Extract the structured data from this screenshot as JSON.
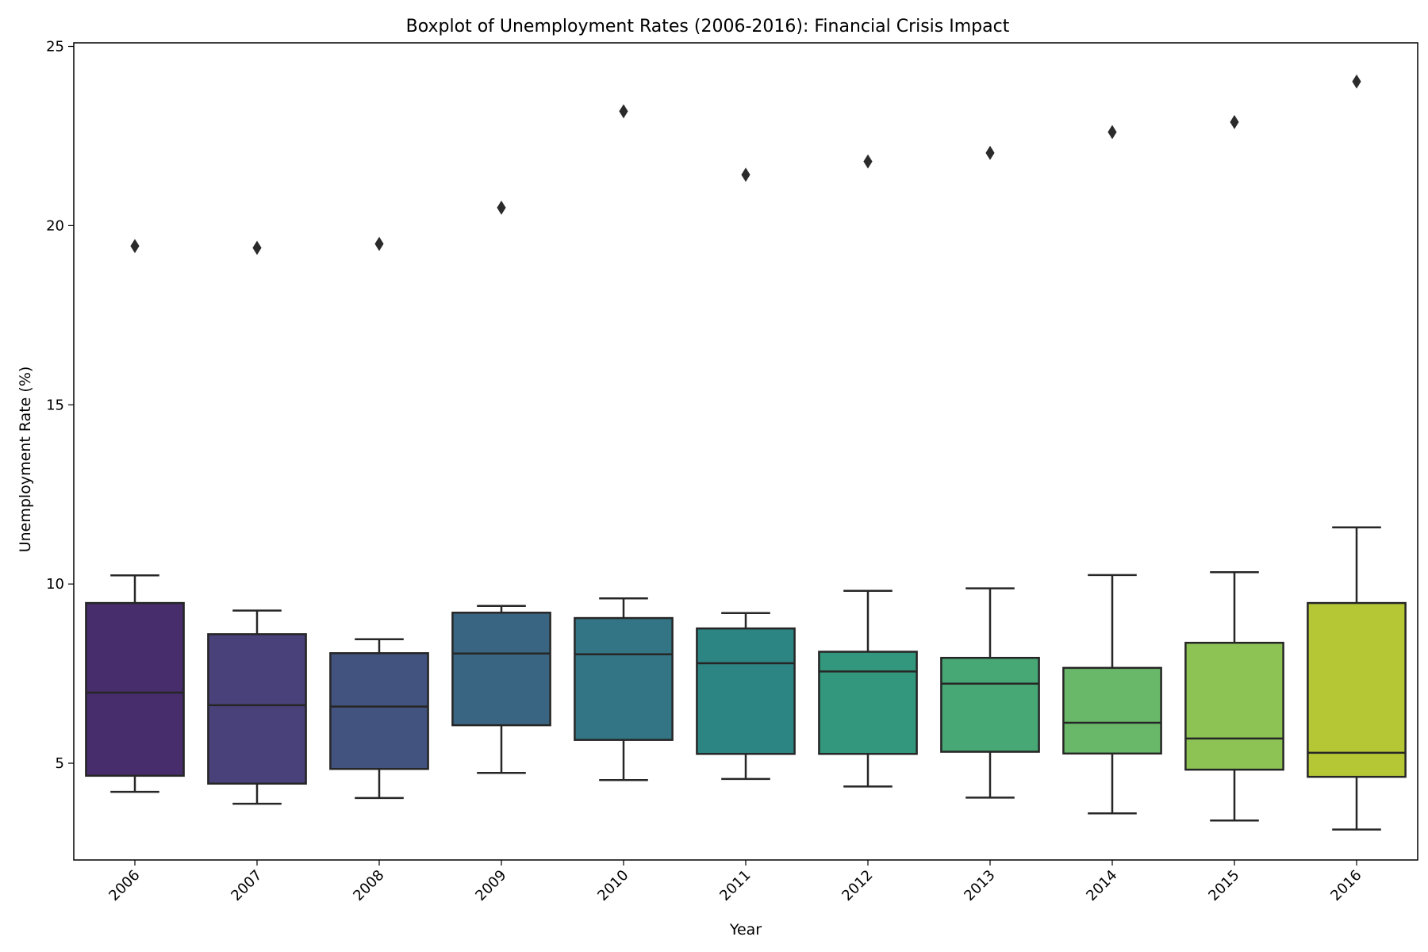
{
  "chart_data": {
    "type": "box",
    "title": "Boxplot of Unemployment Rates (2006-2016): Financial Crisis Impact",
    "xlabel": "Year",
    "ylabel": "Unemployment Rate (%)",
    "ylim": [
      2.3,
      25.1
    ],
    "yticks": [
      5,
      10,
      15,
      20,
      25
    ],
    "grid": false,
    "legend": "none",
    "categories": [
      "2006",
      "2007",
      "2008",
      "2009",
      "2010",
      "2011",
      "2012",
      "2013",
      "2014",
      "2015",
      "2016"
    ],
    "boxes": [
      {
        "year": "2006",
        "whisker_low": 4.2,
        "q1": 4.65,
        "median": 6.97,
        "q3": 9.47,
        "whisker_high": 10.24,
        "outliers": [
          19.43
        ],
        "color": "#472d6b"
      },
      {
        "year": "2007",
        "whisker_low": 3.87,
        "q1": 4.43,
        "median": 6.62,
        "q3": 8.6,
        "whisker_high": 9.26,
        "outliers": [
          19.38
        ],
        "color": "#48417a"
      },
      {
        "year": "2008",
        "whisker_low": 4.03,
        "q1": 4.84,
        "median": 6.58,
        "q3": 8.07,
        "whisker_high": 8.46,
        "outliers": [
          19.49
        ],
        "color": "#41537e"
      },
      {
        "year": "2009",
        "whisker_low": 4.73,
        "q1": 6.06,
        "median": 8.06,
        "q3": 9.2,
        "whisker_high": 9.39,
        "outliers": [
          20.5
        ],
        "color": "#3a6582"
      },
      {
        "year": "2010",
        "whisker_low": 4.53,
        "q1": 5.65,
        "median": 8.04,
        "q3": 9.05,
        "whisker_high": 9.6,
        "outliers": [
          23.19
        ],
        "color": "#337584"
      },
      {
        "year": "2011",
        "whisker_low": 4.56,
        "q1": 5.26,
        "median": 7.79,
        "q3": 8.76,
        "whisker_high": 9.19,
        "outliers": [
          21.42
        ],
        "color": "#2d8583"
      },
      {
        "year": "2012",
        "whisker_low": 4.35,
        "q1": 5.26,
        "median": 7.56,
        "q3": 8.11,
        "whisker_high": 9.81,
        "outliers": [
          21.79
        ],
        "color": "#32977c"
      },
      {
        "year": "2013",
        "whisker_low": 4.04,
        "q1": 5.32,
        "median": 7.22,
        "q3": 7.94,
        "whisker_high": 9.88,
        "outliers": [
          22.03
        ],
        "color": "#47a876"
      },
      {
        "year": "2014",
        "whisker_low": 3.6,
        "q1": 5.27,
        "median": 6.13,
        "q3": 7.66,
        "whisker_high": 10.25,
        "outliers": [
          22.61
        ],
        "color": "#69b86a"
      },
      {
        "year": "2015",
        "whisker_low": 3.4,
        "q1": 4.82,
        "median": 5.69,
        "q3": 8.36,
        "whisker_high": 10.33,
        "outliers": [
          22.89
        ],
        "color": "#8dc355"
      },
      {
        "year": "2016",
        "whisker_low": 3.15,
        "q1": 4.62,
        "median": 5.29,
        "q3": 9.47,
        "whisker_high": 11.58,
        "outliers": [
          24.02
        ],
        "color": "#b5c735"
      }
    ]
  }
}
